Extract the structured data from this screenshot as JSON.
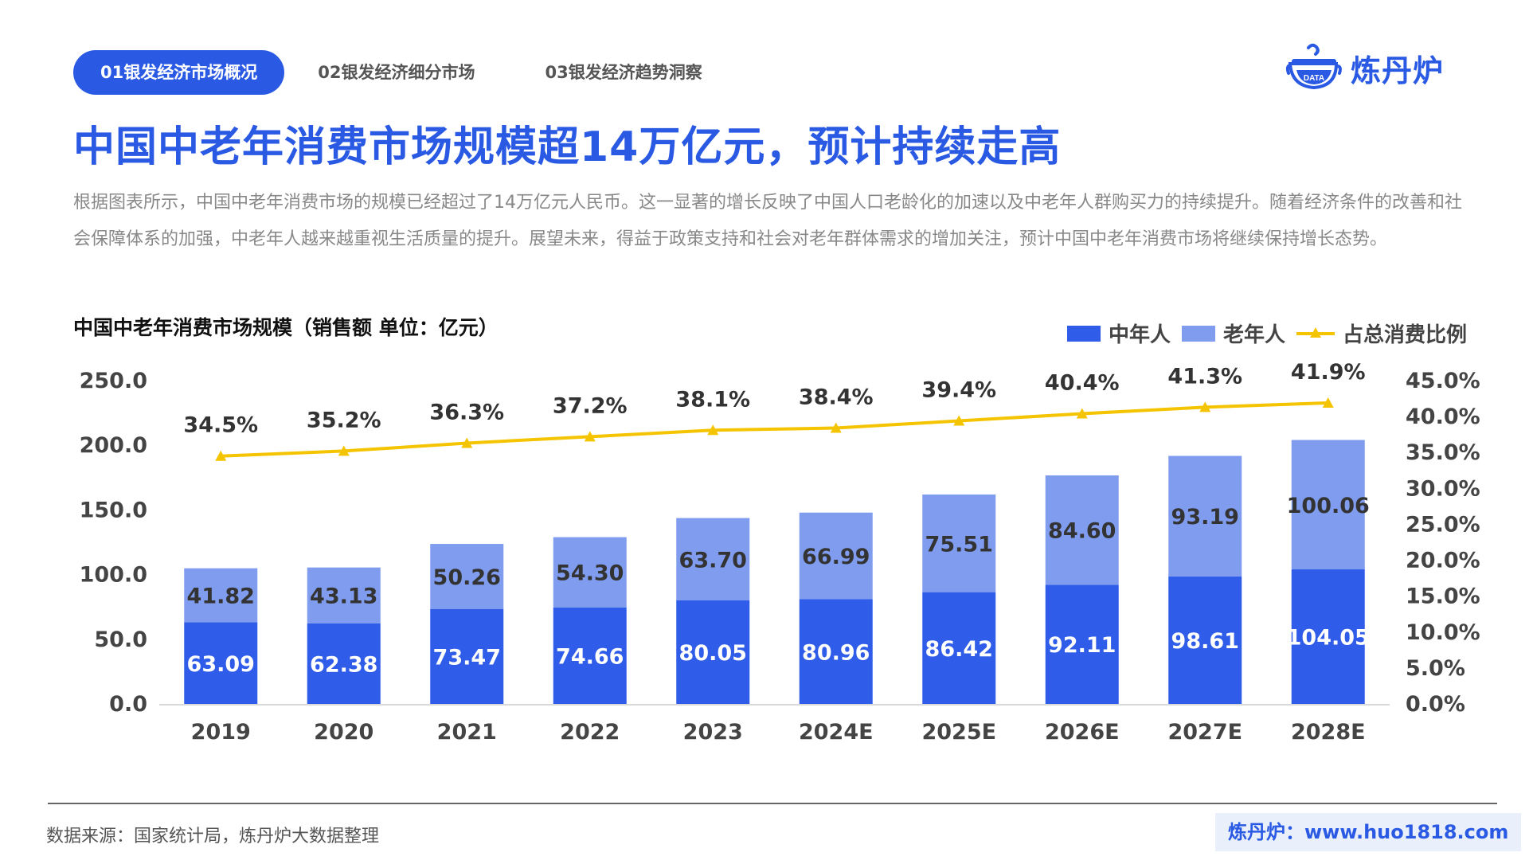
{
  "nav": {
    "tabs": [
      {
        "label": "01银发经济市场概况"
      },
      {
        "label": "02银发经济细分市场"
      },
      {
        "label": "03银发经济趋势洞察"
      }
    ]
  },
  "logo": {
    "badge_text": "DATA",
    "name": "炼丹炉"
  },
  "title": "中国中老年消费市场规模超14万亿元，预计持续走高",
  "description": "根据图表所示，中国中老年消费市场的规模已经超过了14万亿元人民币。这一显著的增长反映了中国人口老龄化的加速以及中老年人群购买力的持续提升。随着经济条件的改善和社会保障体系的加强，中老年人越来越重视生活质量的提升。展望未来，得益于政策支持和社会对老年群体需求的增加关注，预计中国中老年消费市场将继续保持增长态势。",
  "footer": {
    "source": "数据来源：国家统计局，炼丹炉大数据整理",
    "site": "炼丹炉：www.huo1818.com"
  },
  "colors": {
    "accent": "#2a5ae3",
    "middle_aged": "#2f5ce8",
    "elderly": "#7f9cef",
    "ratio_line": "#f5c400"
  },
  "chart_data": {
    "type": "bar",
    "stacked": true,
    "title": "中国中老年消费市场规模（销售额   单位：亿元）",
    "categories": [
      "2019",
      "2020",
      "2021",
      "2022",
      "2023",
      "2024E",
      "2025E",
      "2026E",
      "2027E",
      "2028E"
    ],
    "series": [
      {
        "name": "中年人",
        "values": [
          63.09,
          62.38,
          73.47,
          74.66,
          80.05,
          80.96,
          86.42,
          92.11,
          98.61,
          104.05
        ],
        "labels": [
          "63.09",
          "62.38",
          "73.47",
          "74.66",
          "80.05",
          "80.96",
          "86.42",
          "92.11",
          "98.61",
          "104.05"
        ]
      },
      {
        "name": "老年人",
        "values": [
          41.82,
          43.13,
          50.26,
          54.3,
          63.7,
          66.99,
          75.51,
          84.6,
          93.19,
          100.06
        ],
        "labels": [
          "41.82",
          "43.13",
          "50.26",
          "54.30",
          "63.70",
          "66.99",
          "75.51",
          "84.60",
          "93.19",
          "100.06"
        ]
      }
    ],
    "line_series": {
      "name": "占总消费比例",
      "type": "line",
      "axis": "right",
      "values": [
        34.5,
        35.2,
        36.3,
        37.2,
        38.1,
        38.4,
        39.4,
        40.4,
        41.3,
        41.9
      ],
      "labels": [
        "34.5%",
        "35.2%",
        "36.3%",
        "37.2%",
        "38.1%",
        "38.4%",
        "39.4%",
        "40.4%",
        "41.3%",
        "41.9%"
      ]
    },
    "y_left": {
      "ticks": [
        "0.0",
        "50.0",
        "100.0",
        "150.0",
        "200.0",
        "250.0"
      ],
      "ylim": [
        0,
        250
      ]
    },
    "y_right": {
      "ticks": [
        "0.0%",
        "5.0%",
        "10.0%",
        "15.0%",
        "20.0%",
        "25.0%",
        "30.0%",
        "35.0%",
        "40.0%",
        "45.0%"
      ],
      "ylim": [
        0,
        45
      ]
    },
    "grid": false,
    "legend": "top-right"
  }
}
